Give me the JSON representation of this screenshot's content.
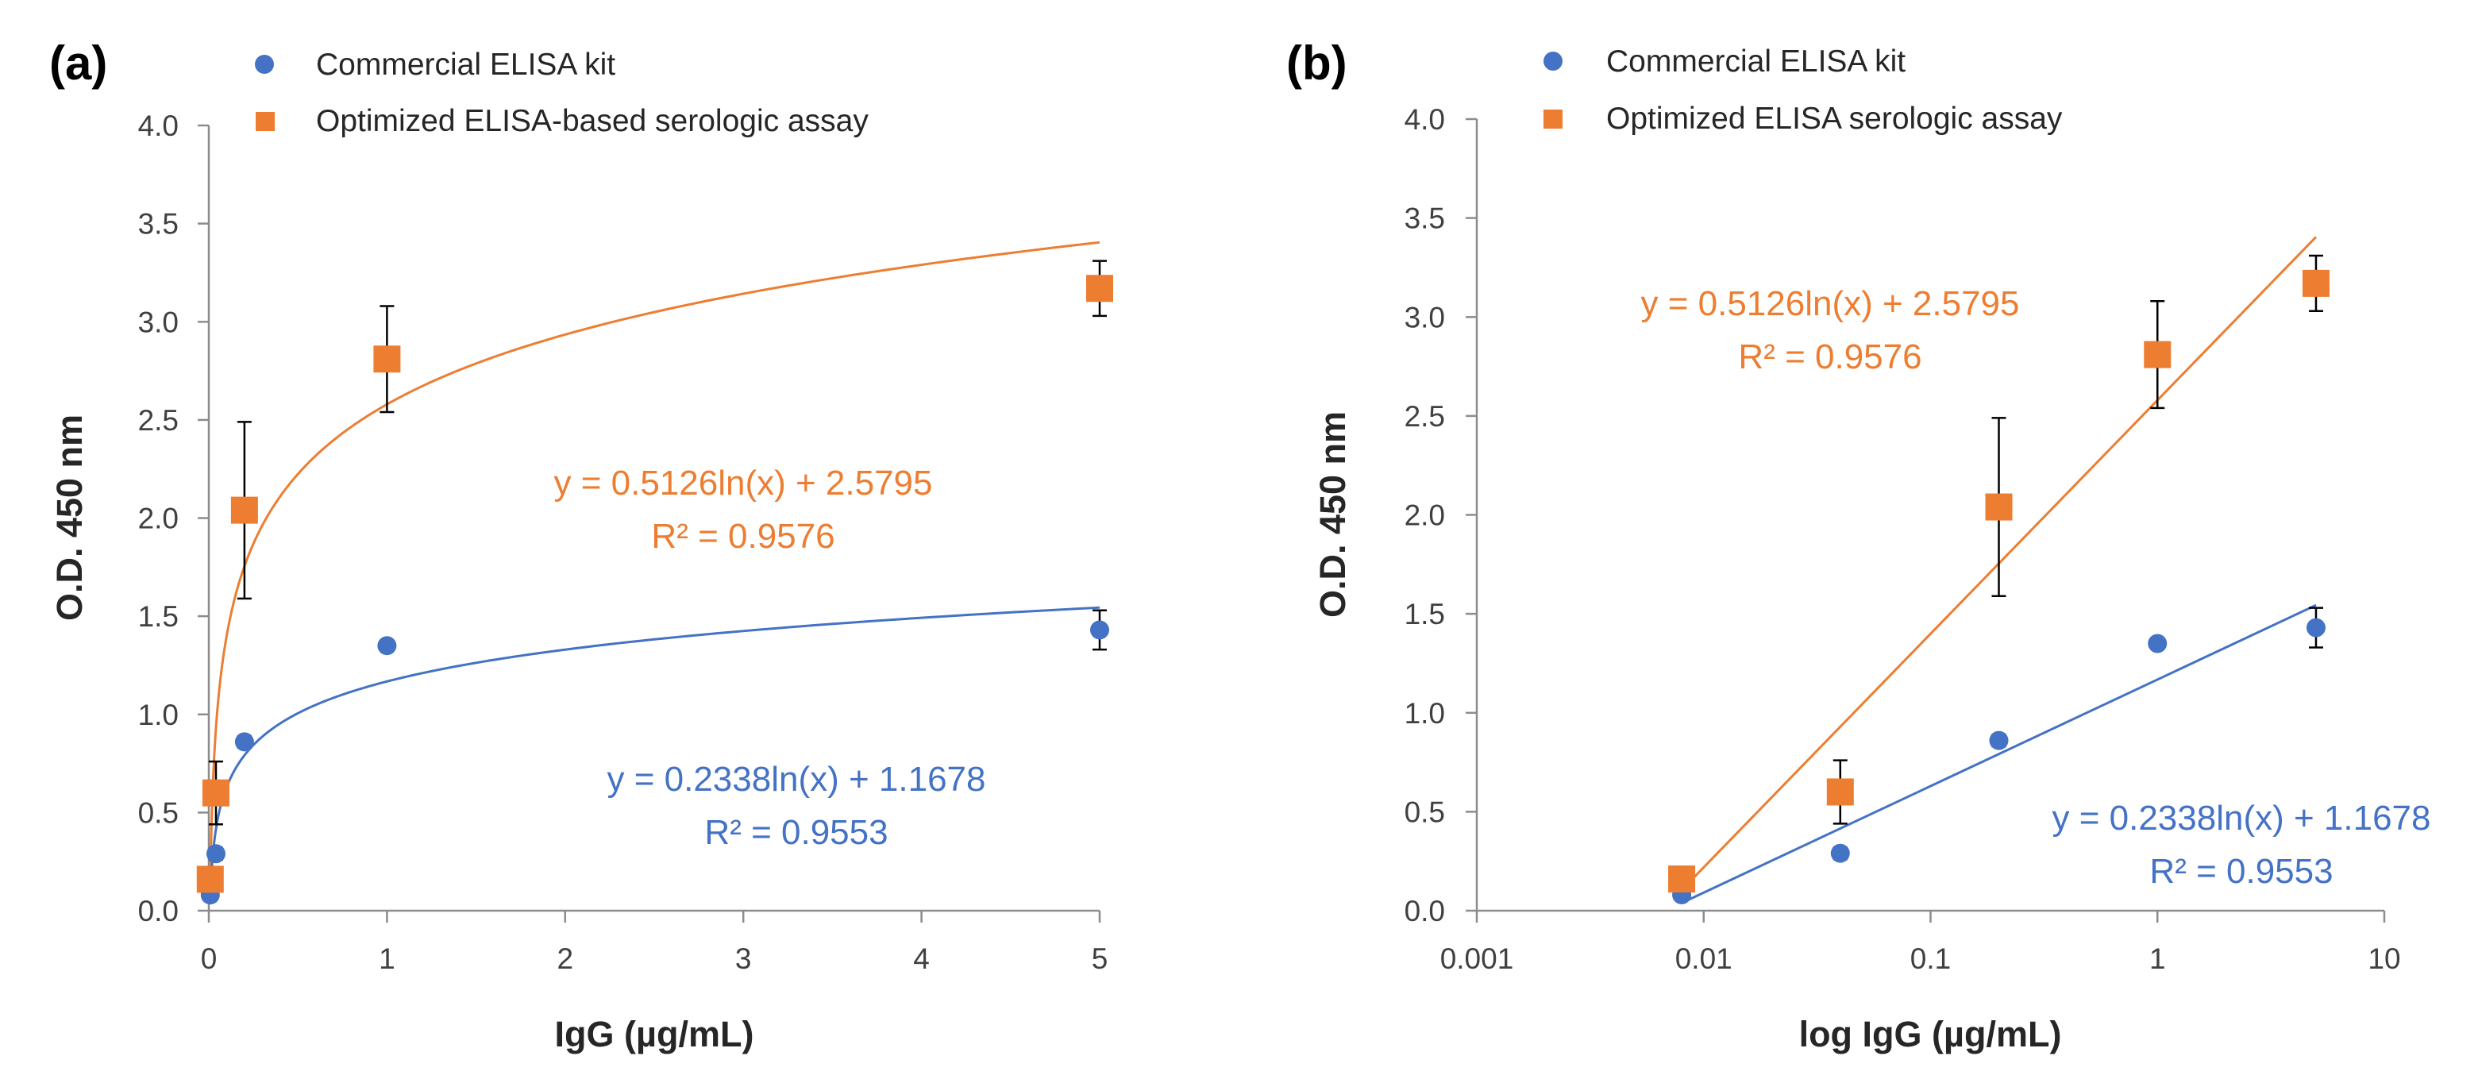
{
  "colors": {
    "commercial": "#4472c4",
    "optimized": "#ed7d31",
    "axis": "#8c8c8c",
    "text": "#262626",
    "errorbar": "#000000"
  },
  "chart_data": [
    {
      "type": "scatter",
      "panel_label": "(a)",
      "xlabel": "IgG (µg/mL)",
      "ylabel": "O.D. 450 nm",
      "xscale": "linear",
      "xlim": [
        0,
        5
      ],
      "ylim": [
        0,
        4
      ],
      "x_ticks": [
        0,
        1,
        2,
        3,
        4,
        5
      ],
      "x_tick_labels": [
        "0",
        "1",
        "2",
        "3",
        "4",
        "5"
      ],
      "y_ticks": [
        0,
        0.5,
        1,
        1.5,
        2,
        2.5,
        3,
        3.5,
        4
      ],
      "y_tick_labels": [
        "0.0",
        "0.5",
        "1.0",
        "1.5",
        "2.0",
        "2.5",
        "3.0",
        "3.5",
        "4.0"
      ],
      "grid": false,
      "legend_position": "top",
      "series": [
        {
          "name": "Commercial ELISA kit",
          "marker": "circle",
          "color": "#4472c4",
          "x": [
            0.008,
            0.04,
            0.2,
            1,
            5
          ],
          "y": [
            0.08,
            0.29,
            0.86,
            1.35,
            1.43
          ],
          "yerr": [
            0.02,
            0.03,
            0.03,
            0.02,
            0.1
          ],
          "trendline": {
            "a": 0.2338,
            "b": 1.1678,
            "equation": "y = 0.2338ln(x) + 1.1678",
            "r2": "R² = 0.9553"
          }
        },
        {
          "name": "Optimized ELISA-based serologic assay",
          "marker": "square",
          "color": "#ed7d31",
          "x": [
            0.008,
            0.04,
            0.2,
            1,
            5
          ],
          "y": [
            0.16,
            0.6,
            2.04,
            2.81,
            3.17
          ],
          "yerr": [
            0.04,
            0.16,
            0.45,
            0.27,
            0.14
          ],
          "trendline": {
            "a": 0.5126,
            "b": 2.5795,
            "equation": "y = 0.5126ln(x) + 2.5795",
            "r2": "R² = 0.9576"
          }
        }
      ]
    },
    {
      "type": "scatter",
      "panel_label": "(b)",
      "xlabel": "log IgG (µg/mL)",
      "ylabel": "O.D. 450 nm",
      "xscale": "log",
      "xlim": [
        0.001,
        10
      ],
      "ylim": [
        0,
        4
      ],
      "x_ticks": [
        0.001,
        0.01,
        0.1,
        1,
        10
      ],
      "x_tick_labels": [
        "0.001",
        "0.01",
        "0.1",
        "1",
        "10"
      ],
      "y_ticks": [
        0,
        0.5,
        1,
        1.5,
        2,
        2.5,
        3,
        3.5,
        4
      ],
      "y_tick_labels": [
        "0.0",
        "0.5",
        "1.0",
        "1.5",
        "2.0",
        "2.5",
        "3.0",
        "3.5",
        "4.0"
      ],
      "grid": false,
      "legend_position": "top",
      "series": [
        {
          "name": "Commercial ELISA kit",
          "marker": "circle",
          "color": "#4472c4",
          "x": [
            0.008,
            0.04,
            0.2,
            1,
            5
          ],
          "y": [
            0.08,
            0.29,
            0.86,
            1.35,
            1.43
          ],
          "yerr": [
            0.02,
            0.03,
            0.03,
            0.02,
            0.1
          ],
          "trendline": {
            "a": 0.2338,
            "b": 1.1678,
            "equation": "y = 0.2338ln(x) + 1.1678",
            "r2": "R² = 0.9553"
          }
        },
        {
          "name": "Optimized ELISA serologic assay",
          "marker": "square",
          "color": "#ed7d31",
          "x": [
            0.008,
            0.04,
            0.2,
            1,
            5
          ],
          "y": [
            0.16,
            0.6,
            2.04,
            2.81,
            3.17
          ],
          "yerr": [
            0.04,
            0.16,
            0.45,
            0.27,
            0.14
          ],
          "trendline": {
            "a": 0.5126,
            "b": 2.5795,
            "equation": "y = 0.5126ln(x) + 2.5795",
            "r2": "R² = 0.9576"
          }
        }
      ]
    }
  ]
}
